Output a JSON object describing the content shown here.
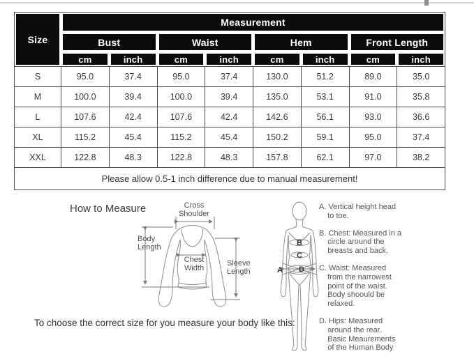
{
  "table": {
    "title": "Measurement",
    "size_header": "Size",
    "groups": [
      "Bust",
      "Waist",
      "Hem",
      "Front Length"
    ],
    "units": [
      "cm",
      "inch",
      "cm",
      "inch",
      "cm",
      "inch",
      "cm",
      "inch"
    ],
    "rows": [
      {
        "size": "S",
        "values": [
          "95.0",
          "37.4",
          "95.0",
          "37.4",
          "130.0",
          "51.2",
          "89.0",
          "35.0"
        ]
      },
      {
        "size": "M",
        "values": [
          "100.0",
          "39.4",
          "100.0",
          "39.4",
          "135.0",
          "53.1",
          "91.0",
          "35.8"
        ]
      },
      {
        "size": "L",
        "values": [
          "107.6",
          "42.4",
          "107.6",
          "42.4",
          "142.6",
          "56.1",
          "93.0",
          "36.6"
        ]
      },
      {
        "size": "XL",
        "values": [
          "115.2",
          "45.4",
          "115.2",
          "45.4",
          "150.2",
          "59.1",
          "95.0",
          "37.4"
        ]
      },
      {
        "size": "XXL",
        "values": [
          "122.8",
          "48.3",
          "122.8",
          "48.3",
          "157.8",
          "62.1",
          "97.0",
          "38.2"
        ]
      }
    ],
    "note": "Please allow 0.5-1 inch difference due to manual measurement!"
  },
  "how_to_measure": {
    "title": "How to Measure",
    "labels": {
      "cross_shoulder": "Cross\nShoulder",
      "body_length": "Body\nLength",
      "chest_width": "Chest\nWidth",
      "sleeve_length": "Sleeve\nLength"
    }
  },
  "body_diagram": {
    "letters": {
      "a": "A",
      "b": "B",
      "c": "C",
      "d": "D"
    },
    "descriptions": [
      "A. Vertical height head\n    to toe.",
      "B. Chest: Measured in a\n    circle around the\n    breasts and back.",
      "C. Waist: Measured\n    from the narrowest\n    point of the waist.\n    Body shoould be\n    relaxed.",
      "D. Hips: Measured\n    around the rear.\n    Basic Meaurements\n    of the Human Body"
    ]
  },
  "footer": {
    "text": "To choose the correct size for you measure your body like this:"
  },
  "colors": {
    "header_bg": "#0b0b0b",
    "border": "#4a4a4a",
    "diagram_stroke": "#8c8c8c",
    "text_dark": "#3a3a3a",
    "text_gray": "#555555"
  }
}
